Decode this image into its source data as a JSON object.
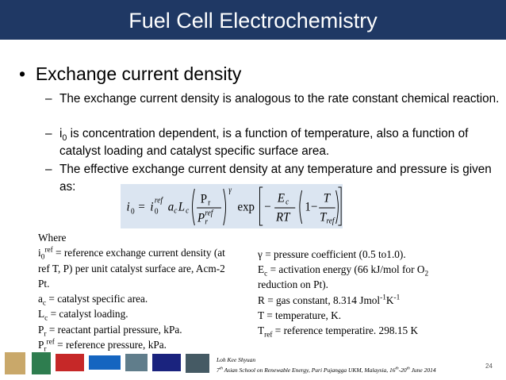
{
  "header": {
    "title": "Fuel Cell Electrochemistry"
  },
  "markers": {
    "bullet": "•",
    "dash": "–"
  },
  "bullet": "Exchange current density",
  "sub_bullets": [
    [
      "The exchange current density is analogous to the rate constant chemical reaction."
    ],
    [
      "i",
      "0",
      " is concentration dependent, is a function of temperature, also a function of  catalyst loading and catalyst specific surface area."
    ],
    [
      "The effective exchange current density at any temperature and pressure is given as:"
    ]
  ],
  "equation": [
    "i",
    "0",
    "=",
    "i",
    "0",
    "ref",
    "a",
    "c",
    "L",
    "c",
    "P",
    "r",
    "P",
    "r",
    "ref",
    "γ",
    "exp",
    "−",
    "E",
    "c",
    "RT",
    "1−",
    "T",
    "T",
    "ref"
  ],
  "where": {
    "left": [
      [
        "Where"
      ],
      [
        "i",
        "0",
        "ref",
        " = reference exchange current density (at"
      ],
      [
        "ref T, P) per unit catalyst surface are, Acm-2"
      ],
      [
        "Pt."
      ],
      [
        "a",
        "c",
        " = catalyst specific area."
      ],
      [
        "L",
        "c",
        " = catalyst loading."
      ],
      [
        "P",
        "r",
        " = reactant partial pressure, kPa."
      ],
      [
        "P",
        "r",
        "ref",
        " = reference pressure, kPa."
      ]
    ],
    "right": [
      [
        "γ = pressure coefficient (0.5 to1.0)."
      ],
      [
        "E",
        "c",
        " = activation energy (66 kJ/mol for O",
        "2"
      ],
      [
        "reduction on Pt)."
      ],
      [
        "R = gas constant, 8.314 Jmol",
        "-1",
        "K",
        "-1"
      ],
      [
        "T = temperature, K."
      ],
      [
        "T",
        "ref",
        " = reference temperatire. 298.15 K"
      ]
    ]
  },
  "footer": {
    "author": "Loh Kee Shyuan",
    "event": [
      "7",
      "th",
      " Asian School on Renewable Energy, Puri Pujangga UKM, Malaysia, 16",
      "th",
      "-20",
      "th",
      " June 2014"
    ],
    "page_number": "24"
  }
}
